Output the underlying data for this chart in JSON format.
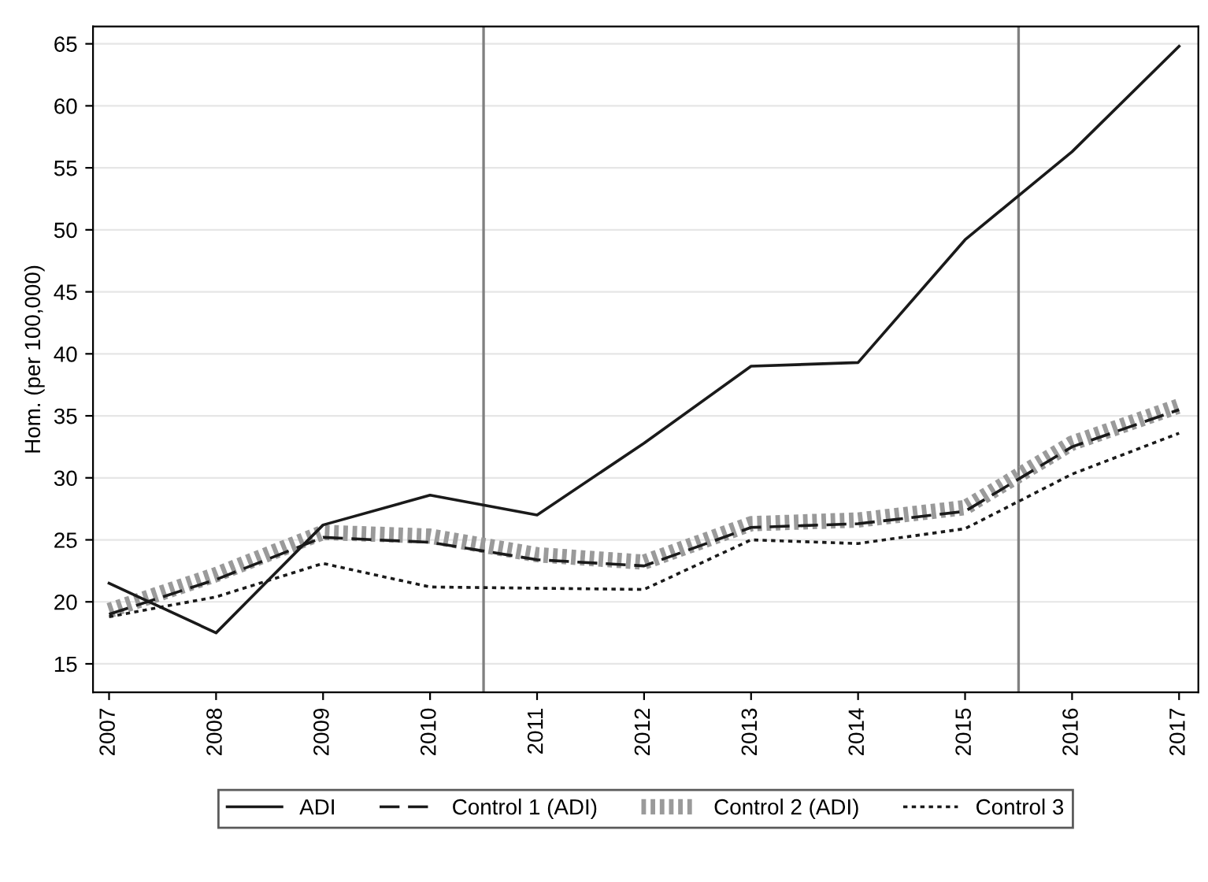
{
  "chart_data": {
    "type": "line",
    "ylabel": "Hom. (per 100,000)",
    "x": [
      2007,
      2008,
      2009,
      2010,
      2011,
      2012,
      2013,
      2014,
      2015,
      2016,
      2017
    ],
    "series": [
      {
        "name": "ADI",
        "color": "#1a1a1a",
        "line_style": "solid",
        "values": [
          21.5,
          17.5,
          26.2,
          28.6,
          27.0,
          32.8,
          39.0,
          39.3,
          49.2,
          56.3,
          64.8
        ]
      },
      {
        "name": "Control 1 (ADI)",
        "color": "#1a1a1a",
        "line_style": "dashed",
        "values": [
          19.0,
          21.8,
          25.2,
          24.8,
          23.4,
          22.9,
          26.0,
          26.3,
          27.3,
          32.5,
          35.5
        ]
      },
      {
        "name": "Control 2 (ADI)",
        "color": "#9a9a9a",
        "line_style": "hatched",
        "values": [
          19.3,
          22.2,
          25.6,
          25.3,
          23.8,
          23.2,
          26.3,
          26.6,
          27.6,
          32.8,
          35.8
        ]
      },
      {
        "name": "Control 3",
        "color": "#1a1a1a",
        "line_style": "dotted",
        "values": [
          18.8,
          20.4,
          23.1,
          21.2,
          21.1,
          21.0,
          25.0,
          24.7,
          25.9,
          30.3,
          33.6
        ]
      }
    ],
    "xlim": [
      2006.85,
      2017.18
    ],
    "xticks": [
      2007,
      2008,
      2009,
      2010,
      2011,
      2012,
      2013,
      2014,
      2015,
      2016,
      2017
    ],
    "ylim": [
      12.7,
      66.4
    ],
    "yticks": [
      15,
      20,
      25,
      30,
      35,
      40,
      45,
      50,
      55,
      60,
      65
    ],
    "ref_lines": [
      {
        "axis": "x",
        "value": 2010.5,
        "color": "#808080"
      },
      {
        "axis": "x",
        "value": 2015.5,
        "color": "#808080"
      }
    ],
    "grid": "y",
    "legend": "bottom",
    "marker": "none"
  }
}
